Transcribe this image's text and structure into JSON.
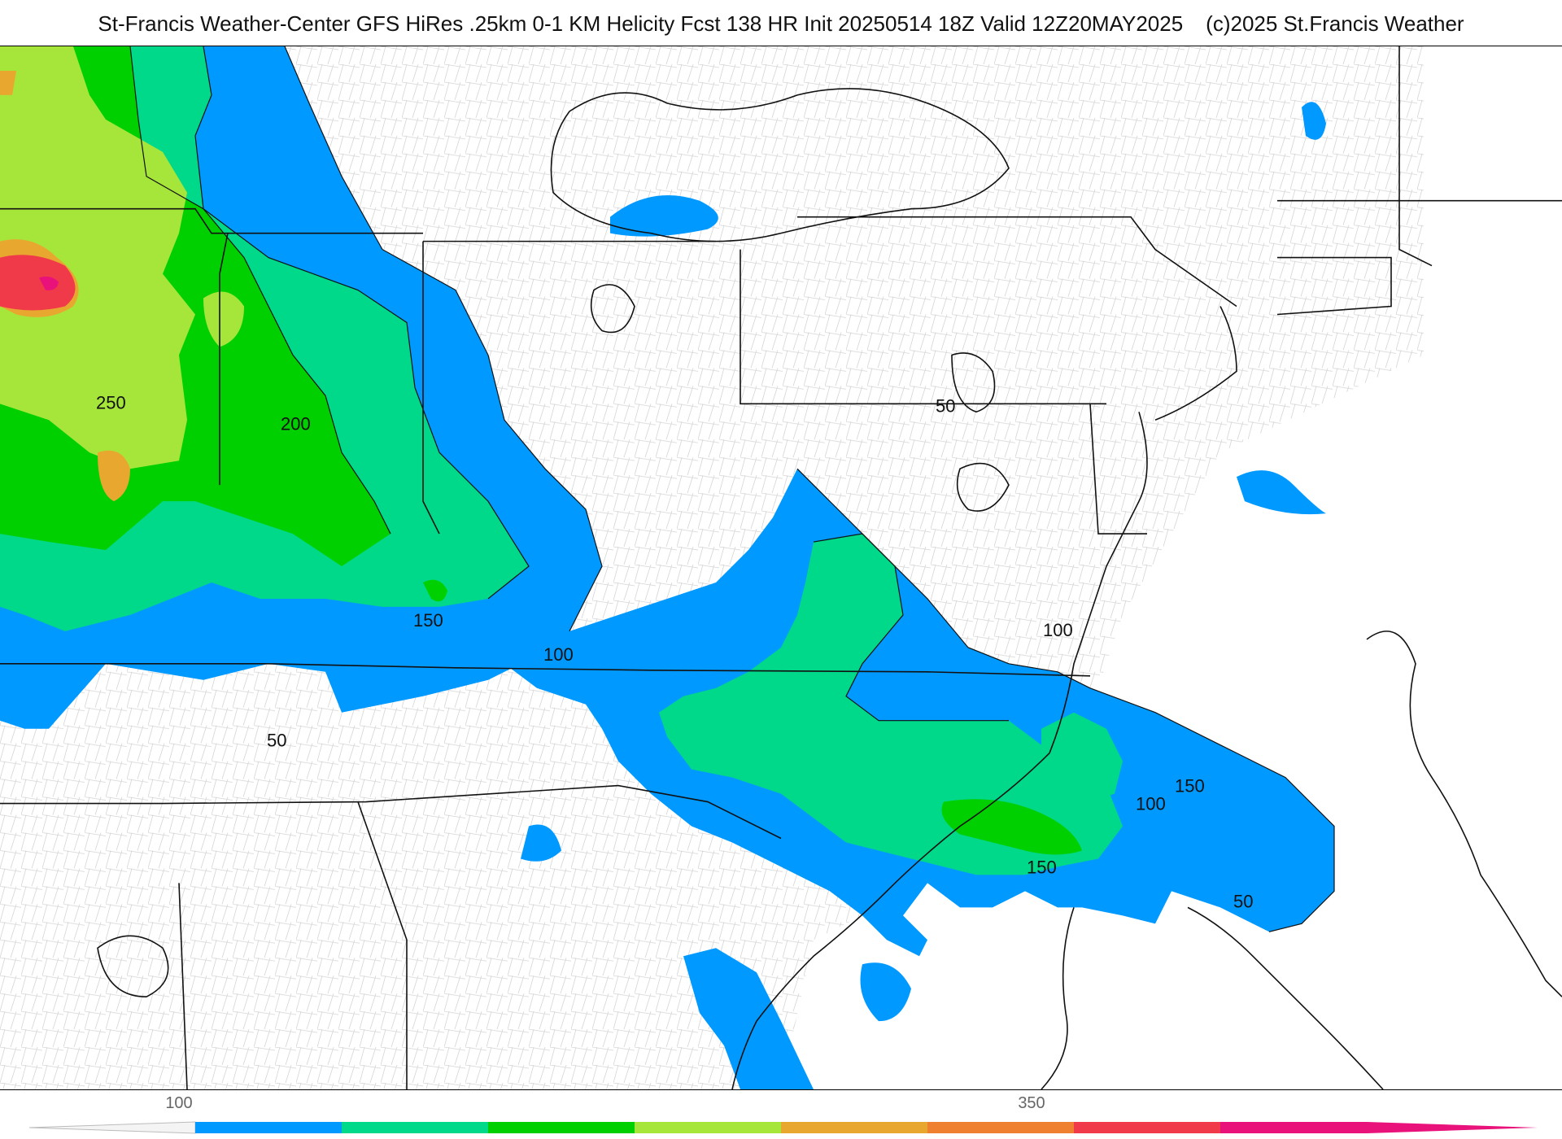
{
  "header": {
    "title": "St-Francis Weather-Center GFS HiRes .25km 0-1 KM Helicity Fcst 138 HR Init 20250514 18Z  Valid 12Z20MAY2025",
    "copyright": "(c)2025 St.Francis Weather"
  },
  "map": {
    "field": "0-1 KM Helicity",
    "contour_labels": [
      "250",
      "200",
      "150",
      "100",
      "50",
      "50",
      "100",
      "150",
      "150",
      "100",
      "50"
    ],
    "fill_colors": {
      "100": "#0099ff",
      "150": "#00d88a",
      "200": "#00d000",
      "250": "#a6e63a",
      "300": "#e8a830",
      "350": "#ee8030",
      "400": "#f03a4a",
      "450": "#e8127a"
    },
    "border_color": "#000000",
    "county_color": "#bbbbbb"
  },
  "colorbar": {
    "tick_labels": [
      "100",
      "350"
    ],
    "colors": [
      "#0099ff",
      "#00d88a",
      "#00d000",
      "#a6e63a",
      "#e8a830",
      "#ee8030",
      "#f03a4a",
      "#e8127a"
    ]
  }
}
